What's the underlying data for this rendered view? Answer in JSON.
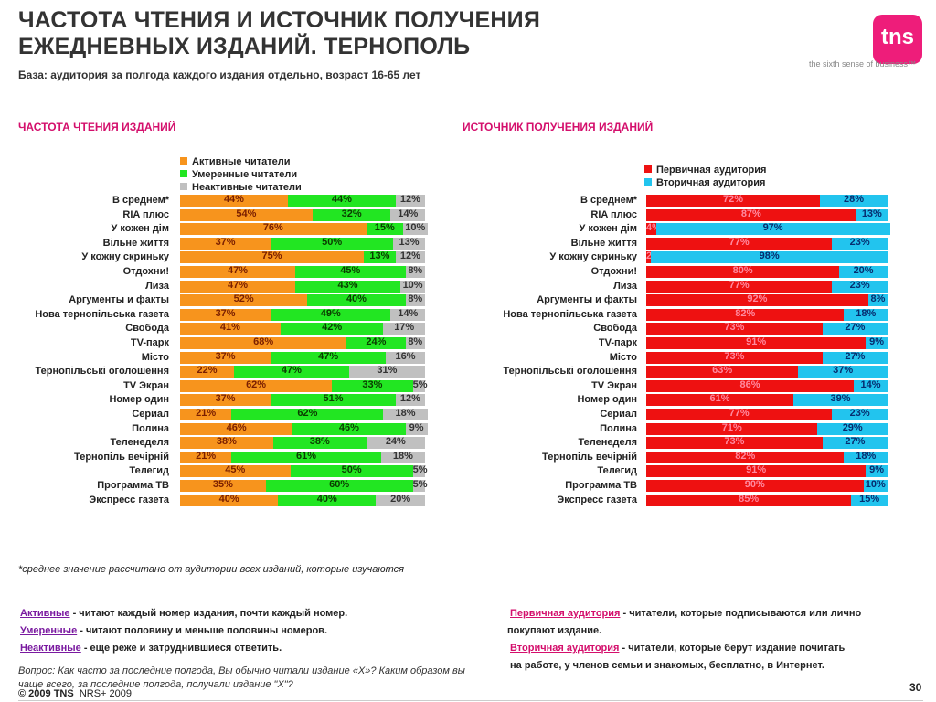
{
  "header": {
    "title_line1": "ЧАСТОТА ЧТЕНИЯ И ИСТОЧНИК ПОЛУЧЕНИЯ",
    "title_line2": "ЕЖЕДНЕВНЫХ ИЗДАНИЙ. ТЕРНОПОЛЬ",
    "logo_text": "tns",
    "tagline": "the sixth sense of business™",
    "base_prefix": "База: аудитория ",
    "base_underlined": "за полгода",
    "base_suffix": " каждого издания отдельно, возраст 16-65 лет"
  },
  "colors": {
    "active": "#f7941d",
    "moderate": "#22e622",
    "inactive": "#c0c0c0",
    "primary": "#ee1111",
    "secondary": "#22c4ee",
    "accent": "#d40f6c"
  },
  "chart_data": [
    {
      "type": "bar",
      "stacked": true,
      "orientation": "horizontal",
      "title": "ЧАСТОТА ЧТЕНИЯ ИЗДАНИЙ",
      "categories": [
        "В среднем*",
        "RIA плюс",
        "У кожен дім",
        "Вільне життя",
        "У кожну скриньку",
        "Отдохни!",
        "Лиза",
        "Аргументы и факты",
        "Нова тернопільська газета",
        "Свобода",
        "TV-парк",
        "Місто",
        "Тернопільські оголошення",
        "TV Экран",
        "Номер один",
        "Сериал",
        "Полина",
        "Теленеделя",
        "Тернопіль вечірній",
        "Телегид",
        "Программа ТВ",
        "Экспресс газета"
      ],
      "series": [
        {
          "name": "Активные читатели",
          "values": [
            44,
            54,
            76,
            37,
            75,
            47,
            47,
            52,
            37,
            41,
            68,
            37,
            22,
            62,
            37,
            21,
            46,
            38,
            21,
            45,
            35,
            40
          ]
        },
        {
          "name": "Умеренные читатели",
          "values": [
            44,
            32,
            15,
            50,
            13,
            45,
            43,
            40,
            49,
            42,
            24,
            47,
            47,
            33,
            51,
            62,
            46,
            38,
            61,
            50,
            60,
            40
          ]
        },
        {
          "name": "Неактивные читатели",
          "values": [
            12,
            14,
            10,
            13,
            12,
            8,
            10,
            8,
            14,
            17,
            8,
            16,
            31,
            5,
            12,
            18,
            9,
            24,
            18,
            5,
            5,
            20
          ]
        }
      ],
      "xlim": [
        0,
        100
      ],
      "unit": "%",
      "legend": "top"
    },
    {
      "type": "bar",
      "stacked": true,
      "orientation": "horizontal",
      "title": "ИСТОЧНИК ПОЛУЧЕНИЯ ИЗДАНИЙ",
      "categories": [
        "В среднем*",
        "RIA плюс",
        "У кожен дім",
        "Вільне життя",
        "У кожну скриньку",
        "Отдохни!",
        "Лиза",
        "Аргументы и факты",
        "Нова тернопільська газета",
        "Свобода",
        "TV-парк",
        "Місто",
        "Тернопільські оголошення",
        "TV Экран",
        "Номер один",
        "Сериал",
        "Полина",
        "Теленеделя",
        "Тернопіль вечірній",
        "Телегид",
        "Программа ТВ",
        "Экспресс газета"
      ],
      "series": [
        {
          "name": "Первичная аудитория",
          "values": [
            72,
            87,
            4,
            77,
            2,
            80,
            77,
            92,
            82,
            73,
            91,
            73,
            63,
            86,
            61,
            77,
            71,
            73,
            82,
            91,
            90,
            85
          ]
        },
        {
          "name": "Вторичная аудитория",
          "values": [
            28,
            13,
            97,
            23,
            98,
            20,
            23,
            8,
            18,
            27,
            9,
            27,
            37,
            14,
            39,
            23,
            29,
            27,
            18,
            9,
            10,
            15
          ]
        }
      ],
      "xlim": [
        0,
        100
      ],
      "unit": "%",
      "legend": "top"
    }
  ],
  "footnote": "*среднее значение рассчитано от аудитории всех изданий, которые изучаются",
  "definitions": {
    "active_term": "Активные",
    "active_text": " - читают каждый номер издания, почти каждый номер.",
    "moderate_term": "Умеренные",
    "moderate_text": " - читают половину и меньше  половины номеров.",
    "inactive_term": "Неактивные",
    "inactive_text": " - еще реже и затруднившиеся ответить.",
    "primary_term": "Первичная аудитория",
    "primary_text": " - читатели, которые подписываются или лично",
    "primary_text2": "покупают издание.",
    "secondary_term": "Вторичная аудитория",
    "secondary_text": " - читатели, которые берут издание почитать",
    "secondary_text2": "на работе, у членов семьи и знакомых, бесплатно, в Интернет."
  },
  "question": {
    "label": "Вопрос:",
    "text": " Как часто за последние полгода, Вы обычно читали издание «Х»? Каким образом вы чаще всего, за последние полгода, получали издание \"Х\"?"
  },
  "footer": {
    "copyright": "© 2009 TNS",
    "source": "NRS+ 2009",
    "page": "30"
  }
}
